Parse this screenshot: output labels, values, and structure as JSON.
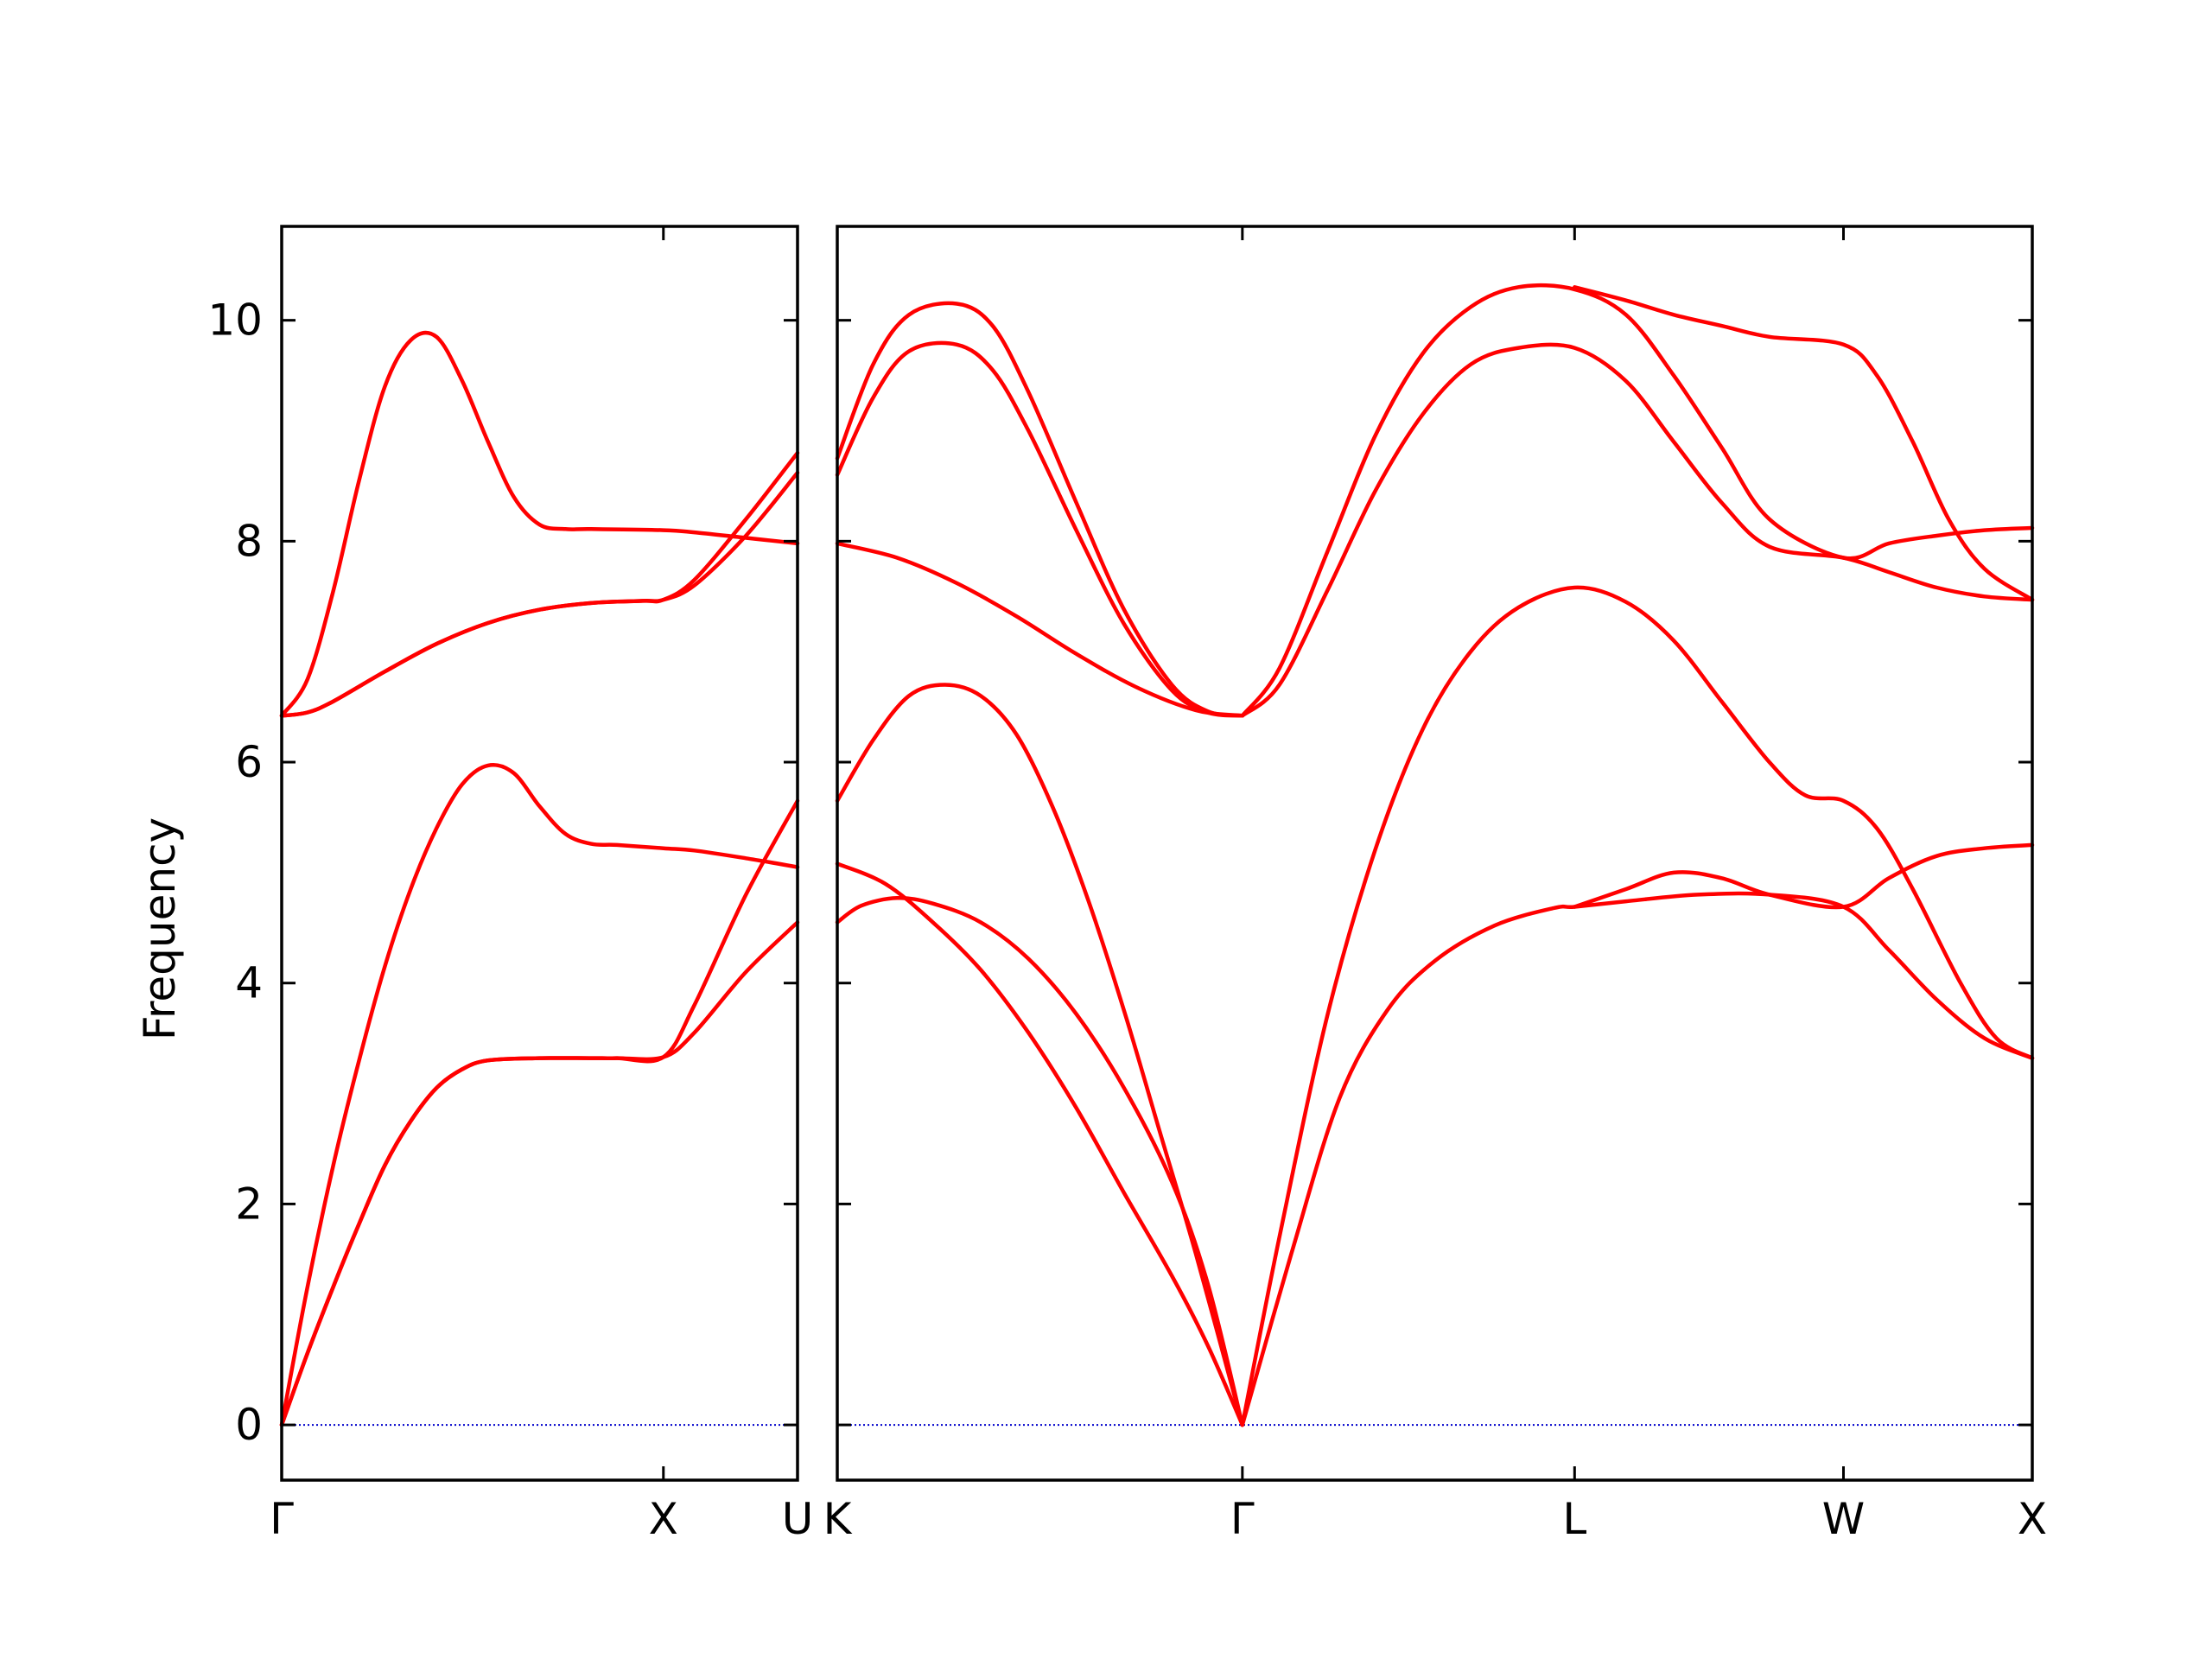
{
  "chart_data": {
    "type": "line",
    "ylabel": "Frequency",
    "ylim": [
      -0.5,
      10.85
    ],
    "yticks": [
      "0",
      "2",
      "4",
      "6",
      "8",
      "10"
    ],
    "ytick_values": [
      0,
      2,
      4,
      6,
      8,
      10
    ],
    "colors": {
      "bands": "#ff0000",
      "zero_line": "#0000cc",
      "axes": "#000000"
    },
    "panels": [
      {
        "name": "Γ-X-U",
        "k_range": [
          0,
          1.0
        ],
        "xtick_positions": [
          0,
          0.74,
          1.0
        ],
        "xtick_labels": [
          "Γ",
          "X",
          "U"
        ],
        "bands": [
          [
            [
              0,
              0
            ],
            [
              0.05,
              1.25
            ],
            [
              0.1,
              2.35
            ],
            [
              0.15,
              3.3
            ],
            [
              0.2,
              4.15
            ],
            [
              0.25,
              4.85
            ],
            [
              0.3,
              5.4
            ],
            [
              0.35,
              5.8
            ],
            [
              0.4,
              5.97
            ],
            [
              0.45,
              5.9
            ],
            [
              0.5,
              5.6
            ],
            [
              0.55,
              5.35
            ],
            [
              0.6,
              5.26
            ],
            [
              0.65,
              5.25
            ],
            [
              0.74,
              5.22
            ],
            [
              0.8,
              5.2
            ],
            [
              0.9,
              5.13
            ],
            [
              1.0,
              5.05
            ]
          ],
          [
            [
              0,
              0
            ],
            [
              0.05,
              0.65
            ],
            [
              0.1,
              1.25
            ],
            [
              0.15,
              1.82
            ],
            [
              0.2,
              2.35
            ],
            [
              0.25,
              2.75
            ],
            [
              0.3,
              3.05
            ],
            [
              0.35,
              3.22
            ],
            [
              0.4,
              3.3
            ],
            [
              0.5,
              3.32
            ],
            [
              0.6,
              3.32
            ],
            [
              0.65,
              3.32
            ],
            [
              0.74,
              3.33
            ],
            [
              0.8,
              3.55
            ],
            [
              0.9,
              4.1
            ],
            [
              1.0,
              4.55
            ]
          ],
          [
            [
              0,
              0
            ],
            [
              0.05,
              0.65
            ],
            [
              0.1,
              1.25
            ],
            [
              0.15,
              1.82
            ],
            [
              0.2,
              2.35
            ],
            [
              0.25,
              2.75
            ],
            [
              0.3,
              3.05
            ],
            [
              0.35,
              3.22
            ],
            [
              0.4,
              3.3
            ],
            [
              0.5,
              3.32
            ],
            [
              0.6,
              3.32
            ],
            [
              0.65,
              3.32
            ],
            [
              0.74,
              3.33
            ],
            [
              0.8,
              3.8
            ],
            [
              0.9,
              4.8
            ],
            [
              1.0,
              5.65
            ]
          ],
          [
            [
              0,
              6.42
            ],
            [
              0.05,
              6.75
            ],
            [
              0.1,
              7.55
            ],
            [
              0.15,
              8.55
            ],
            [
              0.2,
              9.4
            ],
            [
              0.25,
              9.82
            ],
            [
              0.3,
              9.85
            ],
            [
              0.35,
              9.45
            ],
            [
              0.4,
              8.9
            ],
            [
              0.45,
              8.4
            ],
            [
              0.5,
              8.15
            ],
            [
              0.55,
              8.11
            ],
            [
              0.6,
              8.11
            ],
            [
              0.74,
              8.1
            ],
            [
              0.8,
              8.08
            ],
            [
              0.9,
              8.03
            ],
            [
              1.0,
              7.98
            ]
          ],
          [
            [
              0,
              6.42
            ],
            [
              0.05,
              6.45
            ],
            [
              0.1,
              6.55
            ],
            [
              0.2,
              6.82
            ],
            [
              0.3,
              7.07
            ],
            [
              0.4,
              7.26
            ],
            [
              0.5,
              7.38
            ],
            [
              0.6,
              7.44
            ],
            [
              0.7,
              7.46
            ],
            [
              0.74,
              7.47
            ],
            [
              0.8,
              7.6
            ],
            [
              0.9,
              8.05
            ],
            [
              1.0,
              8.62
            ]
          ],
          [
            [
              0,
              6.42
            ],
            [
              0.05,
              6.45
            ],
            [
              0.1,
              6.55
            ],
            [
              0.2,
              6.82
            ],
            [
              0.3,
              7.07
            ],
            [
              0.4,
              7.26
            ],
            [
              0.5,
              7.38
            ],
            [
              0.6,
              7.44
            ],
            [
              0.7,
              7.46
            ],
            [
              0.74,
              7.47
            ],
            [
              0.8,
              7.65
            ],
            [
              0.9,
              8.2
            ],
            [
              1.0,
              8.8
            ]
          ]
        ]
      },
      {
        "name": "K-Γ-L-W-X",
        "k_range": [
          0,
          1.0
        ],
        "xtick_positions": [
          0,
          0.339,
          0.617,
          0.842,
          1.0
        ],
        "xtick_labels": [
          "K",
          "Γ",
          "L",
          "W",
          "X"
        ],
        "bands": [
          [
            [
              0,
              4.55
            ],
            [
              0.02,
              4.7
            ],
            [
              0.05,
              4.77
            ],
            [
              0.08,
              4.72
            ],
            [
              0.12,
              4.55
            ],
            [
              0.16,
              4.22
            ],
            [
              0.2,
              3.72
            ],
            [
              0.24,
              3.05
            ],
            [
              0.28,
              2.2
            ],
            [
              0.31,
              1.28
            ],
            [
              0.339,
              0
            ]
          ],
          [
            [
              0,
              5.08
            ],
            [
              0.04,
              4.9
            ],
            [
              0.08,
              4.55
            ],
            [
              0.12,
              4.12
            ],
            [
              0.16,
              3.55
            ],
            [
              0.2,
              2.87
            ],
            [
              0.24,
              2.1
            ],
            [
              0.28,
              1.35
            ],
            [
              0.31,
              0.72
            ],
            [
              0.339,
              0
            ]
          ],
          [
            [
              0,
              5.65
            ],
            [
              0.03,
              6.2
            ],
            [
              0.06,
              6.6
            ],
            [
              0.09,
              6.7
            ],
            [
              0.12,
              6.6
            ],
            [
              0.15,
              6.25
            ],
            [
              0.18,
              5.6
            ],
            [
              0.21,
              4.75
            ],
            [
              0.24,
              3.75
            ],
            [
              0.27,
              2.65
            ],
            [
              0.3,
              1.55
            ],
            [
              0.339,
              0
            ]
          ],
          [
            [
              0,
              7.98
            ],
            [
              0.05,
              7.85
            ],
            [
              0.1,
              7.62
            ],
            [
              0.15,
              7.32
            ],
            [
              0.2,
              6.98
            ],
            [
              0.25,
              6.68
            ],
            [
              0.3,
              6.47
            ],
            [
              0.339,
              6.42
            ]
          ],
          [
            [
              0,
              8.6
            ],
            [
              0.03,
              9.3
            ],
            [
              0.06,
              9.72
            ],
            [
              0.1,
              9.78
            ],
            [
              0.13,
              9.55
            ],
            [
              0.16,
              9.0
            ],
            [
              0.2,
              8.1
            ],
            [
              0.24,
              7.25
            ],
            [
              0.28,
              6.65
            ],
            [
              0.31,
              6.45
            ],
            [
              0.339,
              6.42
            ]
          ],
          [
            [
              0,
              8.75
            ],
            [
              0.03,
              9.6
            ],
            [
              0.06,
              10.05
            ],
            [
              0.1,
              10.15
            ],
            [
              0.13,
              9.95
            ],
            [
              0.16,
              9.35
            ],
            [
              0.2,
              8.35
            ],
            [
              0.24,
              7.38
            ],
            [
              0.28,
              6.7
            ],
            [
              0.31,
              6.46
            ],
            [
              0.339,
              6.42
            ]
          ],
          [
            [
              0.339,
              0
            ],
            [
              0.38,
              1.55
            ],
            [
              0.42,
              2.95
            ],
            [
              0.46,
              3.75
            ],
            [
              0.5,
              4.2
            ],
            [
              0.55,
              4.52
            ],
            [
              0.6,
              4.68
            ],
            [
              0.617,
              4.69
            ],
            [
              0.66,
              4.74
            ],
            [
              0.72,
              4.8
            ],
            [
              0.78,
              4.8
            ],
            [
              0.842,
              4.69
            ],
            [
              0.88,
              4.3
            ],
            [
              0.92,
              3.85
            ],
            [
              0.96,
              3.5
            ],
            [
              1.0,
              3.32
            ]
          ],
          [
            [
              0.339,
              0
            ],
            [
              0.37,
              1.7
            ],
            [
              0.41,
              3.7
            ],
            [
              0.45,
              5.2
            ],
            [
              0.49,
              6.3
            ],
            [
              0.53,
              7.0
            ],
            [
              0.57,
              7.4
            ],
            [
              0.617,
              7.58
            ],
            [
              0.66,
              7.45
            ],
            [
              0.7,
              7.1
            ],
            [
              0.74,
              6.55
            ],
            [
              0.78,
              6.0
            ],
            [
              0.81,
              5.7
            ],
            [
              0.842,
              5.65
            ],
            [
              0.87,
              5.4
            ],
            [
              0.9,
              4.85
            ],
            [
              0.94,
              4.0
            ],
            [
              0.97,
              3.5
            ],
            [
              1.0,
              3.32
            ]
          ],
          [
            [
              0.617,
              4.69
            ],
            [
              0.66,
              4.85
            ],
            [
              0.7,
              5.0
            ],
            [
              0.74,
              4.95
            ],
            [
              0.78,
              4.8
            ],
            [
              0.842,
              4.69
            ],
            [
              0.88,
              4.95
            ],
            [
              0.92,
              5.15
            ],
            [
              0.96,
              5.22
            ],
            [
              1.0,
              5.25
            ]
          ],
          [
            [
              0.339,
              6.42
            ],
            [
              0.37,
              6.7
            ],
            [
              0.41,
              7.55
            ],
            [
              0.45,
              8.45
            ],
            [
              0.49,
              9.15
            ],
            [
              0.53,
              9.6
            ],
            [
              0.57,
              9.75
            ],
            [
              0.617,
              9.75
            ],
            [
              0.66,
              9.45
            ],
            [
              0.7,
              8.9
            ],
            [
              0.74,
              8.35
            ],
            [
              0.78,
              7.95
            ],
            [
              0.842,
              7.85
            ],
            [
              0.88,
              7.72
            ],
            [
              0.92,
              7.58
            ],
            [
              0.96,
              7.5
            ],
            [
              1.0,
              7.47
            ]
          ],
          [
            [
              0.339,
              6.42
            ],
            [
              0.37,
              6.85
            ],
            [
              0.41,
              7.9
            ],
            [
              0.45,
              8.95
            ],
            [
              0.49,
              9.7
            ],
            [
              0.53,
              10.12
            ],
            [
              0.57,
              10.3
            ],
            [
              0.617,
              10.28
            ],
            [
              0.66,
              10.05
            ],
            [
              0.7,
              9.5
            ],
            [
              0.74,
              8.85
            ],
            [
              0.78,
              8.2
            ],
            [
              0.842,
              7.85
            ],
            [
              0.88,
              7.98
            ],
            [
              0.92,
              8.05
            ],
            [
              0.96,
              8.1
            ],
            [
              1.0,
              8.12
            ]
          ],
          [
            [
              0.617,
              10.3
            ],
            [
              0.66,
              10.18
            ],
            [
              0.7,
              10.05
            ],
            [
              0.74,
              9.95
            ],
            [
              0.78,
              9.85
            ],
            [
              0.842,
              9.78
            ],
            [
              0.87,
              9.5
            ],
            [
              0.9,
              8.9
            ],
            [
              0.93,
              8.2
            ],
            [
              0.96,
              7.75
            ],
            [
              1.0,
              7.47
            ]
          ]
        ]
      }
    ]
  }
}
